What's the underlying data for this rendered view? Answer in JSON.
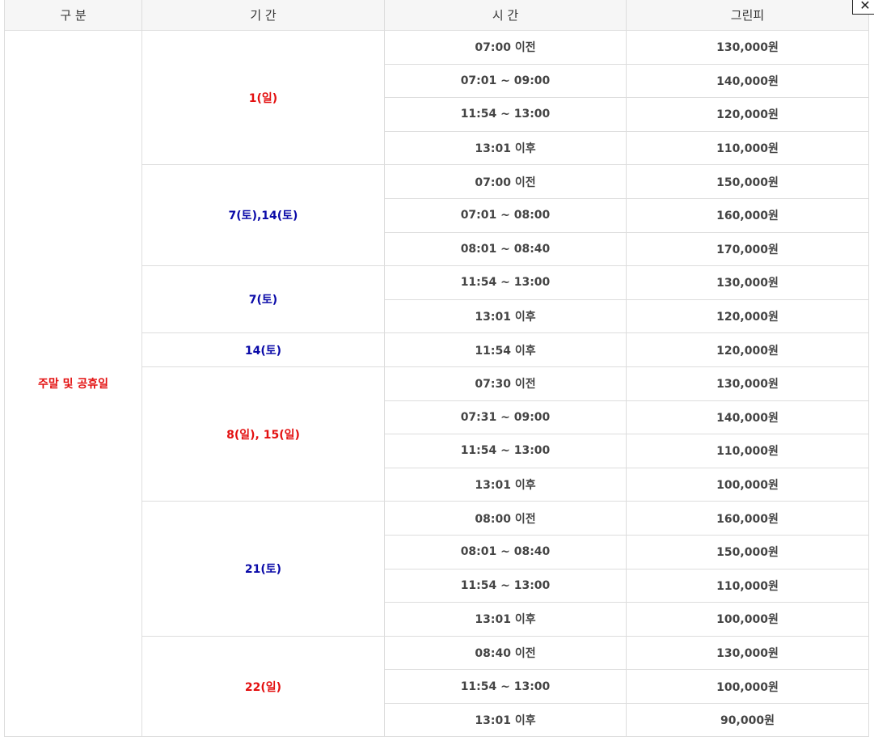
{
  "headers": [
    "구 분",
    "기 간",
    "시 간",
    "그린피"
  ],
  "category": "주말 및 공휴일",
  "close_icon": "close-icon",
  "colors": {
    "red": "#e31010",
    "blue": "#0a0aa8",
    "header_bg": "#f6f6f6",
    "border": "#dddddd"
  },
  "groups": [
    {
      "period": "1(일)",
      "color": "red",
      "rows": [
        {
          "time": "07:00 이전",
          "fee": "130,000원"
        },
        {
          "time": "07:01 ~ 09:00",
          "fee": "140,000원"
        },
        {
          "time": "11:54 ~ 13:00",
          "fee": "120,000원"
        },
        {
          "time": "13:01 이후",
          "fee": "110,000원"
        }
      ]
    },
    {
      "period": "7(토),14(토)",
      "color": "blue",
      "rows": [
        {
          "time": "07:00 이전",
          "fee": "150,000원"
        },
        {
          "time": "07:01 ~ 08:00",
          "fee": "160,000원"
        },
        {
          "time": "08:01 ~ 08:40",
          "fee": "170,000원"
        }
      ]
    },
    {
      "period": "7(토)",
      "color": "blue",
      "rows": [
        {
          "time": "11:54 ~ 13:00",
          "fee": "130,000원"
        },
        {
          "time": "13:01 이후",
          "fee": "120,000원"
        }
      ]
    },
    {
      "period": "14(토)",
      "color": "blue",
      "rows": [
        {
          "time": "11:54 이후",
          "fee": "120,000원"
        }
      ]
    },
    {
      "period": "8(일), 15(일)",
      "color": "red",
      "rows": [
        {
          "time": "07:30 이전",
          "fee": "130,000원"
        },
        {
          "time": "07:31 ~ 09:00",
          "fee": "140,000원"
        },
        {
          "time": "11:54 ~ 13:00",
          "fee": "110,000원"
        },
        {
          "time": "13:01 이후",
          "fee": "100,000원"
        }
      ]
    },
    {
      "period": "21(토)",
      "color": "blue",
      "rows": [
        {
          "time": "08:00 이전",
          "fee": "160,000원"
        },
        {
          "time": "08:01 ~ 08:40",
          "fee": "150,000원"
        },
        {
          "time": "11:54 ~ 13:00",
          "fee": "110,000원"
        },
        {
          "time": "13:01 이후",
          "fee": "100,000원"
        }
      ]
    },
    {
      "period": "22(일)",
      "color": "red",
      "rows": [
        {
          "time": "08:40 이전",
          "fee": "130,000원"
        },
        {
          "time": "11:54 ~ 13:00",
          "fee": "100,000원"
        },
        {
          "time": "13:01 이후",
          "fee": "90,000원"
        }
      ]
    }
  ]
}
